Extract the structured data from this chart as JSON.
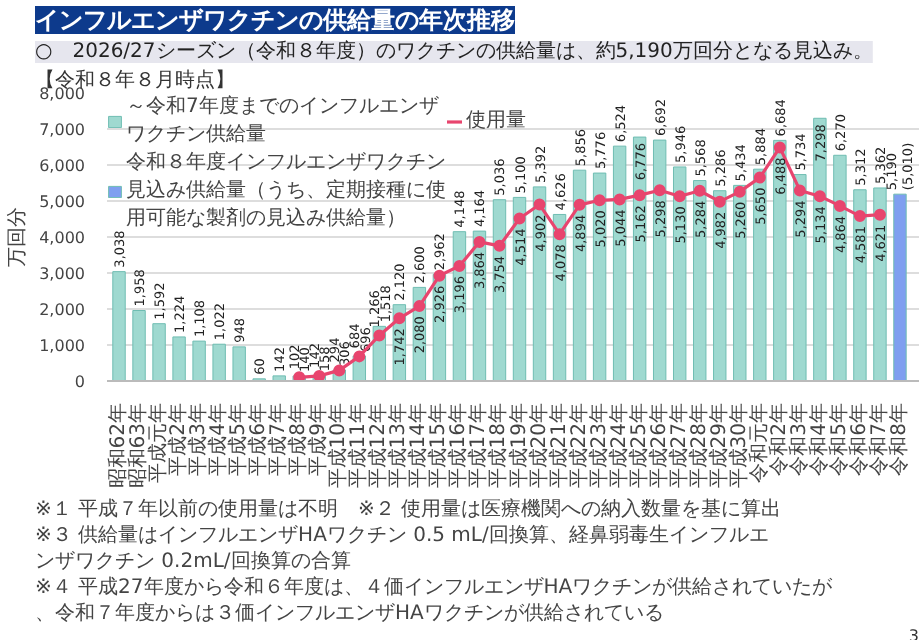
{
  "chart_data": {
    "type": "bar",
    "title": "インフルエンザワクチンの供給量の年次推移",
    "subtitle": "○　2026/27シーズン（令和８年度）のワクチンの供給量は、約5,190万回分となる見込み。",
    "ylabel": "万回分",
    "annotations": [
      "【令和８年８月時点】",
      "※１ 平成７年以前の使用量は不明　※２ 使用量は医療機関への納入数量を基に算出",
      "※３ 供給量はインフルエンザHAワクチン 0.5 mL/回換算、経鼻弱毒生インフルエンザワクチン 0.2mL/回換算の合算",
      "※４ 平成27年度から令和６年度は、４価インフルエンザHAワクチンが供給されていたが、令和７年度からは３価インフルエンザHAワクチンが供給されている",
      "3"
    ],
    "categories": [
      "昭和62年",
      "昭和63年",
      "平成元年",
      "平成2年",
      "平成3年",
      "平成4年",
      "平成5年",
      "平成6年",
      "平成7年",
      "平成8年",
      "平成9年",
      "平成10年",
      "平成11年",
      "平成12年",
      "平成13年",
      "平成14年",
      "平成15年",
      "平成16年",
      "平成17年",
      "平成18年",
      "平成19年",
      "平成20年",
      "平成21年",
      "平成22年",
      "平成23年",
      "平成24年",
      "平成25年",
      "平成26年",
      "平成27年",
      "平成28年",
      "平成29年",
      "平成30年",
      "令和元年",
      "令和2年",
      "令和3年",
      "令和4年",
      "令和5年",
      "令和6年",
      "令和7年",
      "令和8年"
    ],
    "series": [
      {
        "name": "～令和7年度までのインフルエンザワクチン供給量",
        "color": "#9fd9d0",
        "values": [
          3038,
          1958,
          1592,
          1224,
          1108,
          1022,
          948,
          60,
          142,
          140,
          158,
          306,
          696,
          1518,
          2120,
          2600,
          2962,
          4148,
          4164,
          5036,
          5100,
          5392,
          4626,
          5856,
          5776,
          6524,
          6776,
          6692,
          5946,
          5568,
          5286,
          5434,
          5884,
          6684,
          5734,
          7298,
          6270,
          5312,
          5362,
          null
        ],
        "value_labels": [
          "3,038",
          "1,958",
          "1,592",
          "1,224",
          "1,108",
          "1,022",
          "948",
          "60",
          "142",
          "140",
          "158",
          "306",
          "696",
          "1,518",
          "2,120",
          "2,600",
          "2,962",
          "4,148",
          "4,164",
          "5,036",
          "5,100",
          "5,392",
          "4,626",
          "5,856",
          "5,776",
          "6,524",
          "6,776",
          "6,692",
          "5,946",
          "5,568",
          "5,286",
          "5,434",
          "5,884",
          "6,684",
          "5,734",
          "7,298",
          "6,270",
          "5,312",
          "5,362",
          null
        ]
      },
      {
        "name": "令和８年度インフルエンザワクチン見込み供給量（うち、定期接種に使用可能な製剤の見込み供給量）",
        "color": "#7f9ff0",
        "values": [
          null,
          null,
          null,
          null,
          null,
          null,
          null,
          null,
          null,
          null,
          null,
          null,
          null,
          null,
          null,
          null,
          null,
          null,
          null,
          null,
          null,
          null,
          null,
          null,
          null,
          null,
          null,
          null,
          null,
          null,
          null,
          null,
          null,
          null,
          null,
          null,
          null,
          null,
          null,
          5190
        ],
        "value_labels": [
          null,
          null,
          null,
          null,
          null,
          null,
          null,
          null,
          null,
          null,
          null,
          null,
          null,
          null,
          null,
          null,
          null,
          null,
          null,
          null,
          null,
          null,
          null,
          null,
          null,
          null,
          null,
          null,
          null,
          null,
          null,
          null,
          null,
          null,
          null,
          null,
          null,
          null,
          null,
          "5,190\n(5,010)"
        ]
      },
      {
        "name": "使用量",
        "type": "line",
        "color": "#e8456e",
        "marker": "circle",
        "values": [
          null,
          null,
          null,
          null,
          null,
          null,
          null,
          null,
          null,
          102,
          142,
          294,
          684,
          1266,
          1742,
          2080,
          2926,
          3196,
          3864,
          3754,
          4514,
          4902,
          4078,
          4894,
          5020,
          5044,
          5162,
          5298,
          5130,
          5284,
          4982,
          5260,
          5650,
          6488,
          5294,
          5134,
          4864,
          4581,
          4621,
          null
        ],
        "value_labels": [
          null,
          null,
          null,
          null,
          null,
          null,
          null,
          null,
          null,
          "102",
          "142",
          "294",
          "684",
          "1,266",
          "1,742",
          "2,080",
          "2,926",
          "3,196",
          "3,864",
          "3,754",
          "4,514",
          "4,902",
          "4,078",
          "4,894",
          "5,020",
          "5,044",
          "5,162",
          "5,298",
          "5,130",
          "5,284",
          "4,982",
          "5,260",
          "5,650",
          "6,488",
          "5,294",
          "5,134",
          "4,864",
          "4,581",
          "4,621",
          null
        ]
      }
    ],
    "ylim": [
      0,
      8000
    ],
    "yticks": [
      {
        "value": 0,
        "label": "0"
      },
      {
        "value": 1000,
        "label": "1,000"
      },
      {
        "value": 2000,
        "label": "2,000"
      },
      {
        "value": 3000,
        "label": "3,000"
      },
      {
        "value": 4000,
        "label": "4,000"
      },
      {
        "value": 5000,
        "label": "5,000"
      },
      {
        "value": 6000,
        "label": "6,000"
      },
      {
        "value": 7000,
        "label": "7,000"
      },
      {
        "value": 8000,
        "label": "8,000"
      }
    ],
    "grid": "y",
    "legend": "top left"
  }
}
